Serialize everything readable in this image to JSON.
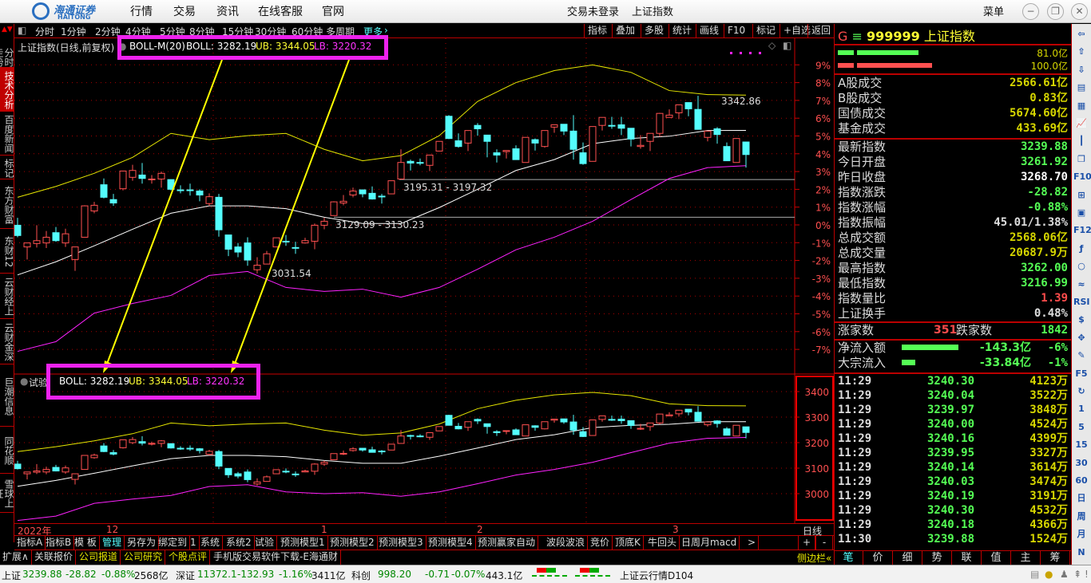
{
  "titlebar": {
    "logo_cn": "海通证券",
    "logo_en": "HAITONG",
    "menu": [
      "行情",
      "交易",
      "资讯",
      "在线客服",
      "官网"
    ],
    "login_status": "交易未登录",
    "current_symbol": "上证指数",
    "menu_button": "菜单",
    "window_buttons": [
      "minimize-icon",
      "restore-icon",
      "close-icon"
    ]
  },
  "sidebar": [
    "分时走势",
    "技术分析",
    "百度新闻",
    "标记",
    "东方财富",
    "东财12",
    "云财经上",
    "云财金深",
    "巨潮信息",
    "同花顺",
    "雪球上证"
  ],
  "sidebar_active": "技术分析",
  "toolbar": {
    "periods": [
      "分时",
      "1分钟",
      "2分钟",
      "4分钟",
      "5分钟",
      "8分钟",
      "15分钟",
      "30分钟",
      "60分钟",
      "多周期"
    ],
    "more": "更多",
    "buttons": [
      "指标",
      "叠加",
      "多股",
      "统计",
      "画线",
      "F10",
      "标记",
      "+自选",
      "返回"
    ]
  },
  "main_chart": {
    "title": "上证指数(日线,前复权)",
    "indicator": "BOLL-M(20)",
    "boll": "BOLL: 3282.19",
    "ub": "UB: 3344.05",
    "lb": "LB: 3220.32",
    "pct_ticks": [
      "9%",
      "8%",
      "7%",
      "6%",
      "5%",
      "4%",
      "3%",
      "2%",
      "1%",
      "0%",
      "-1%",
      "-2%",
      "-3%",
      "-4%",
      "-5%",
      "-6%",
      "-7%"
    ],
    "annotations": {
      "high": "3342.86",
      "low": "3031.54",
      "range1": "3195.31 - 3197.32",
      "range2": "3129.09 - 3130.23"
    }
  },
  "sub_chart": {
    "title": "试验",
    "boll": "BOLL: 3282.19",
    "ub": "UB: 3344.05",
    "lb": "LB: 3220.32",
    "ticks": [
      "3400",
      "3300",
      "3200",
      "3100",
      "3000"
    ]
  },
  "date_axis": {
    "labels": [
      "2022年",
      "12",
      "1",
      "2",
      "3"
    ],
    "period": "日线"
  },
  "indicator_tabs": [
    "指标A",
    "指标B",
    "模 板",
    "管理",
    "另存为",
    "绑定到",
    "1",
    "系统",
    "系统2",
    "试验",
    "预测模型1",
    "预测模型2",
    "预测模型3",
    "预测模型4",
    "预测赢家自动",
    "波段波浪",
    "竞价",
    "顶底K",
    "牛回头",
    "日周月macd",
    ">"
  ],
  "indicator_tabs_active": "管理",
  "zoom_buttons": [
    "+",
    "-"
  ],
  "ext_row": [
    {
      "label": "扩展∧",
      "color": "#dddddd"
    },
    {
      "label": "关联报价",
      "color": "#dddddd"
    },
    {
      "label": "公司报道",
      "color": "#e6e600"
    },
    {
      "label": "公司研究",
      "color": "#e6e600"
    },
    {
      "label": "个股点评",
      "color": "#e6e600"
    },
    {
      "label": "手机版交易软件下载-E海通财",
      "color": "#dddddd"
    }
  ],
  "right_panel": {
    "header": {
      "g": "G",
      "menu_icon": "≡",
      "code": "999999",
      "name": "上证指数"
    },
    "bars": [
      {
        "value": "81.0亿",
        "color": "#55ff55",
        "fill": 0.43
      },
      {
        "value": "100.0亿",
        "color": "#ff5050",
        "fill": 0.52
      }
    ],
    "turnover": [
      {
        "k": "A股成交",
        "v": "2566.61亿",
        "c": "yel"
      },
      {
        "k": "B股成交",
        "v": "0.83亿",
        "c": "yel"
      },
      {
        "k": "国债成交",
        "v": "5674.60亿",
        "c": "yel"
      },
      {
        "k": "基金成交",
        "v": "433.69亿",
        "c": "yel"
      }
    ],
    "quote": [
      {
        "k": "最新指数",
        "v": "3239.88",
        "c": "grn"
      },
      {
        "k": "今日开盘",
        "v": "3261.92",
        "c": "grn"
      },
      {
        "k": "昨日收盘",
        "v": "3268.70",
        "c": "wht"
      },
      {
        "k": "指数涨跌",
        "v": "-28.82",
        "c": "grn"
      },
      {
        "k": "指数涨幅",
        "v": "-0.88%",
        "c": "grn"
      },
      {
        "k": "指数振幅",
        "v": "45.01/1.38%",
        "c": "gry"
      },
      {
        "k": "总成交额",
        "v": "2568.06亿",
        "c": "yel"
      },
      {
        "k": "总成交量",
        "v": "20687.9万",
        "c": "yel"
      },
      {
        "k": "最高指数",
        "v": "3262.00",
        "c": "grn"
      },
      {
        "k": "最低指数",
        "v": "3216.99",
        "c": "grn"
      },
      {
        "k": "指数量比",
        "v": "1.39",
        "c": "rd"
      },
      {
        "k": "上证换手",
        "v": "0.48%",
        "c": "gry"
      }
    ],
    "breadth": {
      "up_label": "涨家数",
      "up": "351",
      "down_label": "跌家数",
      "down": "1842"
    },
    "flows": [
      {
        "k": "净流入额",
        "v": "-143.3亿",
        "pct": "-6%",
        "fill": 0.6
      },
      {
        "k": "大宗流入",
        "v": "-33.84亿",
        "pct": "-1%",
        "fill": 0.14
      }
    ],
    "ticks": [
      {
        "t": "11:29",
        "p": "3240.30",
        "v": "4123万"
      },
      {
        "t": "11:29",
        "p": "3240.04",
        "v": "3522万"
      },
      {
        "t": "11:29",
        "p": "3239.97",
        "v": "3848万"
      },
      {
        "t": "11:29",
        "p": "3240.00",
        "v": "4524万"
      },
      {
        "t": "11:29",
        "p": "3240.16",
        "v": "4399万"
      },
      {
        "t": "11:29",
        "p": "3239.95",
        "v": "3327万"
      },
      {
        "t": "11:29",
        "p": "3240.14",
        "v": "3614万"
      },
      {
        "t": "11:29",
        "p": "3240.03",
        "v": "3474万"
      },
      {
        "t": "11:29",
        "p": "3240.19",
        "v": "3191万"
      },
      {
        "t": "11:29",
        "p": "3240.30",
        "v": "4532万"
      },
      {
        "t": "11:29",
        "p": "3240.18",
        "v": "4366万"
      },
      {
        "t": "11:30",
        "p": "3239.88",
        "v": "1524万"
      }
    ],
    "sidebar_toggle": "侧边栏«",
    "tabs": [
      "笔",
      "价",
      "细",
      "势",
      "联",
      "值",
      "主",
      "筹"
    ],
    "tabs_active": "笔"
  },
  "icon_bar": [
    "left-arrow-icon",
    "up-arrow-icon",
    "down-arrow-icon",
    "list-icon",
    "grid-icon",
    "trend-icon",
    "candles-icon",
    "windows-icon",
    "F10",
    "tree-icon",
    "notes-icon",
    "F12",
    "formula-icon",
    "circle-icon",
    "wave-icon",
    "RSI",
    "dollar-icon",
    "move-icon",
    "pencil-icon",
    "F5",
    "refresh-icon",
    "1",
    "5",
    "15",
    "30",
    "60",
    "日",
    "周",
    "月",
    "N"
  ],
  "status_bar": {
    "sh": {
      "name": "上证",
      "price": "3239.88",
      "chg": "-28.82",
      "pct": "-0.88%",
      "amt": "2568亿"
    },
    "sz": {
      "name": "深证",
      "price": "11372.1",
      "chg": "-132.93",
      "pct": "-1.16%",
      "amt": "3411亿"
    },
    "kc": {
      "name": "科创",
      "price": "998.20",
      "chg": "-0.71",
      "pct": "-0.07%",
      "amt": "443.1亿"
    },
    "server": "上证云行情D104"
  },
  "colors": {
    "up": "#ff5050",
    "down": "#54fcfc",
    "ub": "#e6e600",
    "mid": "#ffffff",
    "lb": "#ff22ff",
    "highlight": "#ee22ee",
    "arrow": "#ffff00"
  },
  "chart_data": {
    "type": "candlestick",
    "symbol": "上证指数",
    "period": "日线",
    "ohlc": [
      [
        3116,
        3129,
        3095,
        3098
      ],
      [
        3078,
        3085,
        3056,
        3085
      ],
      [
        3084,
        3116,
        3077,
        3089
      ],
      [
        3085,
        3106,
        3076,
        3095
      ],
      [
        3103,
        3113,
        3087,
        3089
      ],
      [
        3085,
        3110,
        3078,
        3101
      ],
      [
        3056,
        3078,
        3036,
        3078
      ],
      [
        3095,
        3151,
        3095,
        3150
      ],
      [
        3141,
        3157,
        3137,
        3151
      ],
      [
        3187,
        3198,
        3163,
        3165
      ],
      [
        3161,
        3171,
        3150,
        3155
      ],
      [
        3180,
        3211,
        3177,
        3211
      ],
      [
        3200,
        3222,
        3194,
        3212
      ],
      [
        3204,
        3225,
        3189,
        3198
      ],
      [
        3196,
        3204,
        3189,
        3197
      ],
      [
        3197,
        3210,
        3182,
        3207
      ],
      [
        3196,
        3196,
        3177,
        3179
      ],
      [
        3178,
        3186,
        3172,
        3177
      ],
      [
        3178,
        3189,
        3168,
        3177
      ],
      [
        3176,
        3179,
        3158,
        3169
      ],
      [
        3154,
        3172,
        3150,
        3166
      ],
      [
        3165,
        3171,
        3096,
        3108
      ],
      [
        3099,
        3099,
        3062,
        3074
      ],
      [
        3078,
        3085,
        3060,
        3069
      ],
      [
        3085,
        3095,
        3045,
        3055
      ],
      [
        3038,
        3060,
        3031.54,
        3046
      ],
      [
        3048,
        3071,
        3048,
        3066
      ],
      [
        3078,
        3094,
        3078,
        3094
      ],
      [
        3088,
        3099,
        3080,
        3087
      ],
      [
        3077,
        3087,
        3066,
        3076
      ],
      [
        3085,
        3094,
        3084,
        3089
      ],
      [
        3088,
        3119,
        3074,
        3116
      ],
      [
        3116,
        3129,
        3109,
        3123
      ],
      [
        3133,
        3158,
        3133,
        3157
      ],
      [
        3155,
        3169,
        3151,
        3158
      ],
      [
        3169,
        3182,
        3165,
        3176
      ],
      [
        3178,
        3178,
        3165,
        3171
      ],
      [
        3172,
        3184,
        3161,
        3162
      ],
      [
        3167,
        3171,
        3154,
        3166
      ],
      [
        3171,
        3194,
        3171,
        3194
      ],
      [
        3197,
        3249,
        3197,
        3226
      ],
      [
        3228,
        3231,
        3212,
        3225
      ],
      [
        3226,
        3233,
        3221,
        3225
      ],
      [
        3221,
        3239,
        3211,
        3239
      ],
      [
        3246,
        3263,
        3246,
        3263
      ],
      [
        3307,
        3309,
        3267,
        3268
      ],
      [
        3264,
        3277,
        3252,
        3254
      ],
      [
        3260,
        3282,
        3246,
        3282
      ],
      [
        3291,
        3295,
        3273,
        3285
      ],
      [
        3274,
        3274,
        3235,
        3263
      ],
      [
        3243,
        3249,
        3226,
        3239
      ],
      [
        3245,
        3247,
        3233,
        3247
      ],
      [
        3250,
        3256,
        3231,
        3231
      ],
      [
        3226,
        3270,
        3226,
        3270
      ],
      [
        3266,
        3268,
        3247,
        3260
      ],
      [
        3254,
        3282,
        3252,
        3282
      ],
      [
        3288,
        3292,
        3278,
        3292
      ],
      [
        3293,
        3293,
        3274,
        3281
      ],
      [
        3281,
        3309,
        3231,
        3249
      ],
      [
        3243,
        3261,
        3222,
        3224
      ],
      [
        3228,
        3289,
        3228,
        3289
      ],
      [
        3291,
        3305,
        3282,
        3305
      ],
      [
        3291,
        3306,
        3285,
        3290
      ],
      [
        3292,
        3306,
        3274,
        3286
      ],
      [
        3286,
        3286,
        3254,
        3267
      ],
      [
        3254,
        3274,
        3250,
        3256
      ],
      [
        3263,
        3277,
        3246,
        3277
      ],
      [
        3277,
        3313,
        3271,
        3312
      ],
      [
        3305,
        3319,
        3305,
        3309
      ],
      [
        3313,
        3327,
        3302,
        3327
      ],
      [
        3331,
        3331,
        3307,
        3320
      ],
      [
        3319,
        3342.86,
        3284,
        3284
      ],
      [
        3270,
        3281,
        3263,
        3281
      ],
      [
        3285,
        3288,
        3259,
        3275
      ],
      [
        3254,
        3261,
        3229,
        3229
      ],
      [
        3226,
        3268,
        3226,
        3268
      ],
      [
        3261.92,
        3262.0,
        3216.99,
        3239.88
      ]
    ],
    "boll": [
      {
        "bar": 1,
        "ub": 3165,
        "mid": 3029,
        "lb": 2895
      },
      {
        "bar": 5,
        "ub": 3184,
        "mid": 3052,
        "lb": 2912
      },
      {
        "bar": 9,
        "ub": 3207,
        "mid": 3080,
        "lb": 2962
      },
      {
        "bar": 13,
        "ub": 3235,
        "mid": 3109,
        "lb": 2979
      },
      {
        "bar": 17,
        "ub": 3277,
        "mid": 3137,
        "lb": 2993
      },
      {
        "bar": 21,
        "ub": 3266,
        "mid": 3150,
        "lb": 3028
      },
      {
        "bar": 25,
        "ub": 3273,
        "mid": 3150,
        "lb": 3035
      },
      {
        "bar": 29,
        "ub": 3277,
        "mid": 3145,
        "lb": 3007
      },
      {
        "bar": 33,
        "ub": 3249,
        "mid": 3130,
        "lb": 3000
      },
      {
        "bar": 37,
        "ub": 3229,
        "mid": 3119,
        "lb": 3004
      },
      {
        "bar": 41,
        "ub": 3238,
        "mid": 3119,
        "lb": 2990
      },
      {
        "bar": 45,
        "ub": 3273,
        "mid": 3147,
        "lb": 3007
      },
      {
        "bar": 49,
        "ub": 3333,
        "mid": 3179,
        "lb": 3039
      },
      {
        "bar": 53,
        "ub": 3366,
        "mid": 3212,
        "lb": 3073
      },
      {
        "bar": 57,
        "ub": 3387,
        "mid": 3231,
        "lb": 3095
      },
      {
        "bar": 61,
        "ub": 3397,
        "mid": 3259,
        "lb": 3123
      },
      {
        "bar": 65,
        "ub": 3384,
        "mid": 3268,
        "lb": 3161
      },
      {
        "bar": 69,
        "ub": 3352,
        "mid": 3272,
        "lb": 3198
      },
      {
        "bar": 73,
        "ub": 3345,
        "mid": 3282,
        "lb": 3217
      },
      {
        "bar": 77,
        "ub": 3344.05,
        "mid": 3282.19,
        "lb": 3220.32
      }
    ],
    "pct_axis_range": [
      "-7%",
      "9%"
    ],
    "sub_axis_range": [
      2960,
      3440
    ],
    "grid": true
  }
}
